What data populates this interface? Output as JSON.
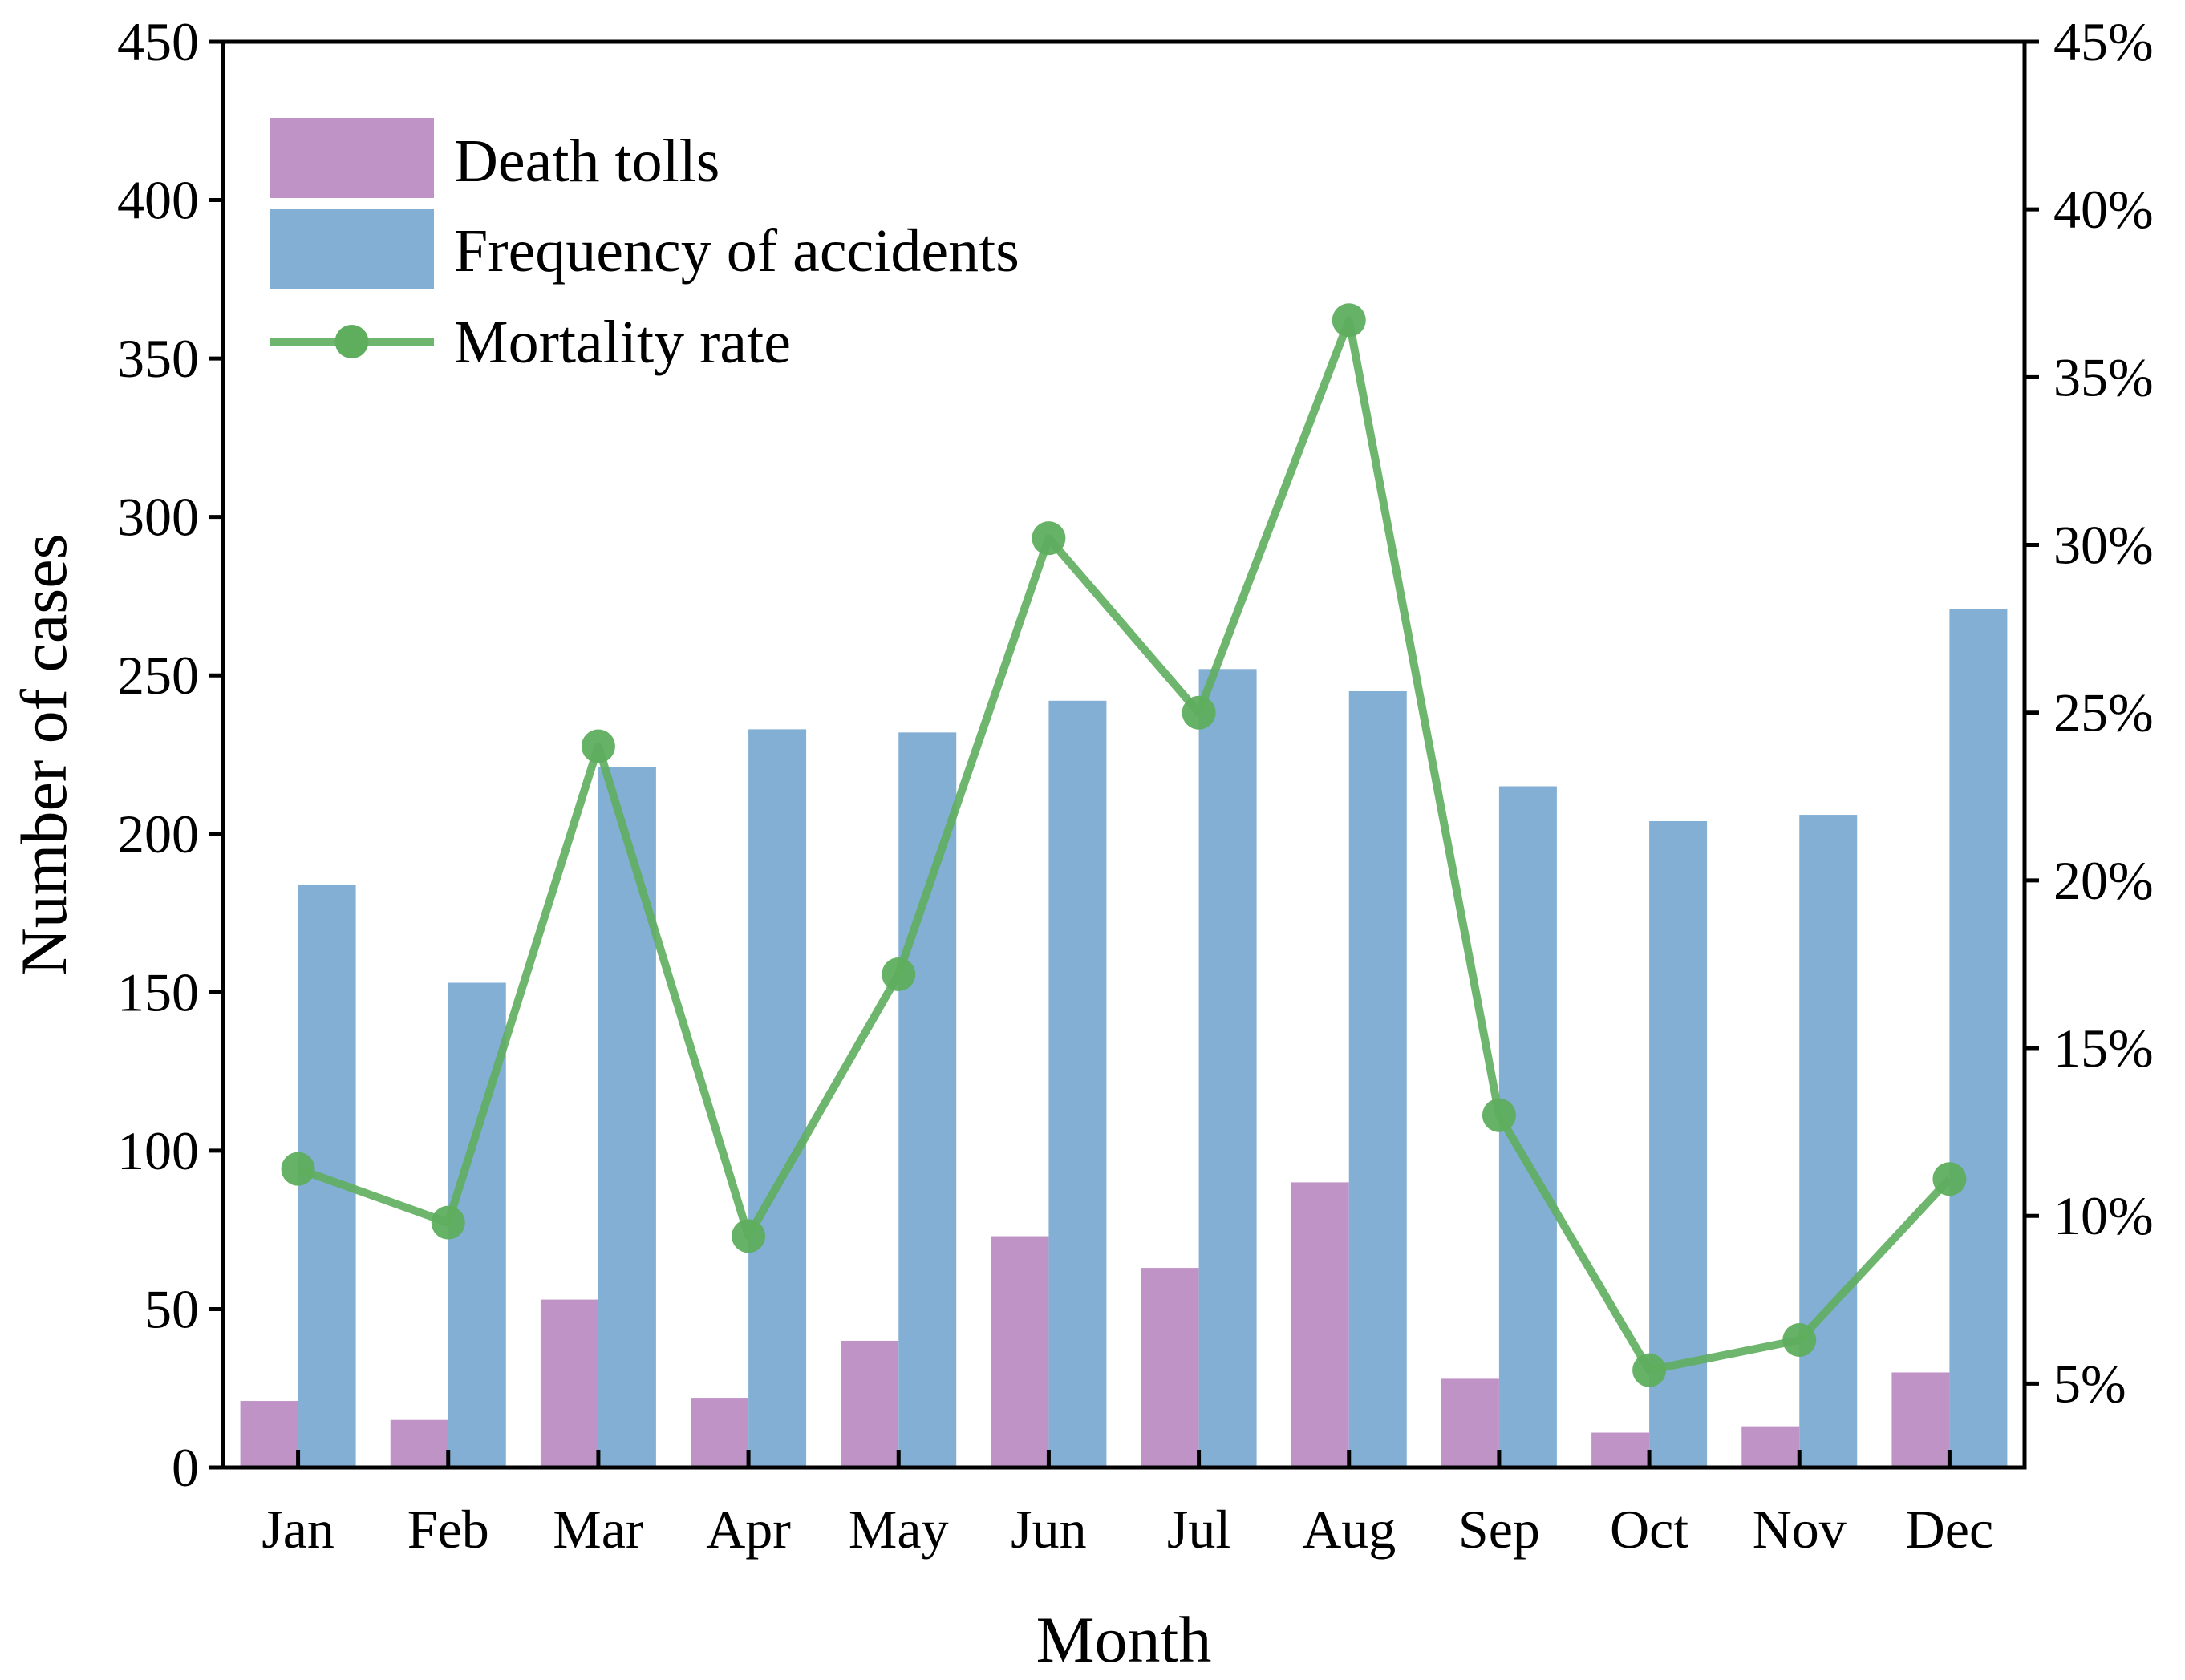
{
  "colors": {
    "death_tolls": "#c093c7",
    "accidents": "#84afd4",
    "mortality": "#5eae5e",
    "axis": "#000000"
  },
  "legend": {
    "placement": "top-left",
    "items": [
      "Death tolls",
      "Frequency of accidents",
      "Mortality rate"
    ]
  },
  "chart_data": {
    "type": "bar",
    "title": "",
    "xlabel": "Month",
    "ylabel": "Number of cases",
    "y2label": "",
    "categories": [
      "Jan",
      "Feb",
      "Mar",
      "Apr",
      "May",
      "Jun",
      "Jul",
      "Aug",
      "Sep",
      "Oct",
      "Nov",
      "Dec"
    ],
    "ylim": [
      0,
      450
    ],
    "yticks": [
      0,
      50,
      100,
      150,
      200,
      250,
      300,
      350,
      400,
      450
    ],
    "y2lim": [
      2.5,
      45
    ],
    "y2ticks": [
      5,
      10,
      15,
      20,
      25,
      30,
      35,
      40,
      45
    ],
    "y2tick_labels": [
      "5%",
      "10%",
      "15%",
      "20%",
      "25%",
      "30%",
      "35%",
      "40%",
      "45%"
    ],
    "grid": false,
    "series": [
      {
        "name": "Death tolls",
        "type": "bar",
        "axis": "left",
        "values": [
          21,
          15,
          53,
          22,
          40,
          73,
          63,
          90,
          28,
          11,
          13,
          30
        ]
      },
      {
        "name": "Frequency of accidents",
        "type": "bar",
        "axis": "left",
        "values": [
          184,
          153,
          221,
          233,
          232,
          242,
          252,
          245,
          215,
          204,
          206,
          271
        ]
      },
      {
        "name": "Mortality rate",
        "type": "line",
        "axis": "right",
        "unit": "%",
        "values": [
          11.4,
          9.8,
          24.0,
          9.4,
          17.2,
          30.2,
          25.0,
          36.7,
          13.0,
          5.4,
          6.3,
          11.1
        ]
      }
    ]
  }
}
